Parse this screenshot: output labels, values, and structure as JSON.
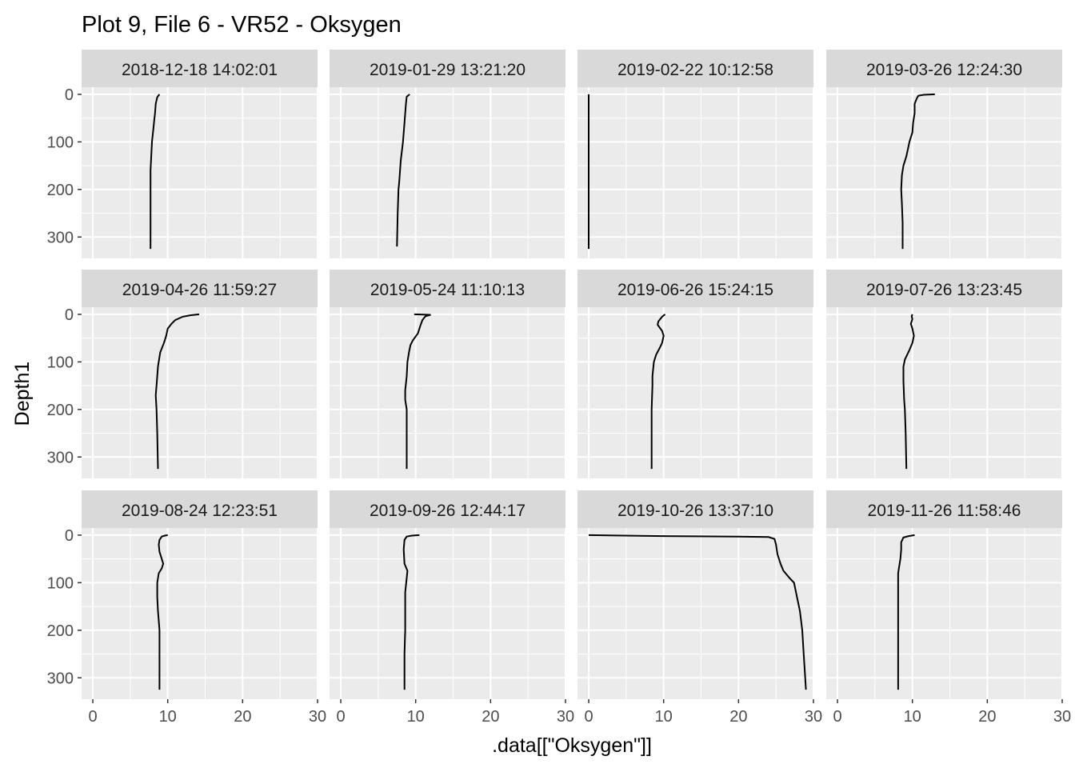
{
  "chart_data": {
    "type": "line",
    "title": "Plot 9, File 6 - VR52  -  Oksygen",
    "xlabel": ".data[[\"Oksygen\"]]",
    "ylabel": "Depth1",
    "xlim": [
      -1.5,
      30
    ],
    "ylim": [
      345,
      -15
    ],
    "x_ticks": [
      0,
      10,
      20,
      30
    ],
    "y_ticks": [
      0,
      100,
      200,
      300
    ],
    "y_reversed": true,
    "grid": true,
    "facets": [
      {
        "label": "2018-12-18 14:02:01",
        "points": [
          [
            8.9,
            0
          ],
          [
            8.6,
            6
          ],
          [
            8.4,
            20
          ],
          [
            8.3,
            40
          ],
          [
            8.2,
            55
          ],
          [
            8.1,
            70
          ],
          [
            7.9,
            100
          ],
          [
            7.8,
            130
          ],
          [
            7.7,
            160
          ],
          [
            7.7,
            200
          ],
          [
            7.7,
            250
          ],
          [
            7.7,
            325
          ]
        ]
      },
      {
        "label": "2019-01-29 13:21:20",
        "points": [
          [
            9.2,
            0
          ],
          [
            8.8,
            5
          ],
          [
            8.7,
            20
          ],
          [
            8.5,
            60
          ],
          [
            8.3,
            100
          ],
          [
            8.0,
            140
          ],
          [
            7.8,
            185
          ],
          [
            7.7,
            200
          ],
          [
            7.6,
            250
          ],
          [
            7.5,
            320
          ]
        ]
      },
      {
        "label": "2019-02-22 10:12:58",
        "points": [
          [
            0,
            0
          ],
          [
            0,
            325
          ]
        ]
      },
      {
        "label": "2019-03-26 12:24:30",
        "points": [
          [
            13.0,
            0
          ],
          [
            11.5,
            1
          ],
          [
            10.8,
            3
          ],
          [
            10.6,
            8
          ],
          [
            10.3,
            20
          ],
          [
            10.3,
            40
          ],
          [
            10.1,
            60
          ],
          [
            10.0,
            80
          ],
          [
            9.6,
            100
          ],
          [
            9.2,
            130
          ],
          [
            8.8,
            150
          ],
          [
            8.6,
            170
          ],
          [
            8.5,
            200
          ],
          [
            8.6,
            230
          ],
          [
            8.7,
            270
          ],
          [
            8.7,
            325
          ]
        ]
      },
      {
        "label": "2019-04-26 11:59:27",
        "points": [
          [
            14.2,
            0
          ],
          [
            13.0,
            2
          ],
          [
            12.0,
            5
          ],
          [
            11.0,
            12
          ],
          [
            10.5,
            20
          ],
          [
            10.0,
            30
          ],
          [
            9.8,
            45
          ],
          [
            9.5,
            60
          ],
          [
            9.0,
            80
          ],
          [
            8.7,
            110
          ],
          [
            8.5,
            150
          ],
          [
            8.4,
            170
          ],
          [
            8.5,
            200
          ],
          [
            8.6,
            250
          ],
          [
            8.7,
            325
          ]
        ]
      },
      {
        "label": "2019-05-24 11:10:13",
        "points": [
          [
            9.8,
            0
          ],
          [
            12.0,
            1
          ],
          [
            11.3,
            4
          ],
          [
            10.9,
            12
          ],
          [
            10.6,
            25
          ],
          [
            10.3,
            40
          ],
          [
            9.6,
            55
          ],
          [
            9.3,
            65
          ],
          [
            9.1,
            80
          ],
          [
            8.9,
            100
          ],
          [
            8.8,
            130
          ],
          [
            8.6,
            160
          ],
          [
            8.6,
            180
          ],
          [
            8.8,
            200
          ],
          [
            8.8,
            250
          ],
          [
            8.8,
            325
          ]
        ]
      },
      {
        "label": "2019-06-26 15:24:15",
        "points": [
          [
            10.2,
            0
          ],
          [
            9.8,
            5
          ],
          [
            9.3,
            15
          ],
          [
            9.2,
            22
          ],
          [
            9.8,
            35
          ],
          [
            10.0,
            45
          ],
          [
            9.8,
            60
          ],
          [
            9.5,
            70
          ],
          [
            9.0,
            85
          ],
          [
            8.7,
            100
          ],
          [
            8.5,
            130
          ],
          [
            8.5,
            150
          ],
          [
            8.4,
            200
          ],
          [
            8.4,
            250
          ],
          [
            8.4,
            325
          ]
        ]
      },
      {
        "label": "2019-07-26 13:23:45",
        "points": [
          [
            10.0,
            0
          ],
          [
            9.9,
            4
          ],
          [
            10.0,
            10
          ],
          [
            9.8,
            20
          ],
          [
            10.0,
            30
          ],
          [
            10.2,
            45
          ],
          [
            10.0,
            60
          ],
          [
            9.6,
            75
          ],
          [
            9.0,
            95
          ],
          [
            8.8,
            110
          ],
          [
            8.8,
            140
          ],
          [
            8.9,
            180
          ],
          [
            9.0,
            200
          ],
          [
            9.1,
            250
          ],
          [
            9.2,
            325
          ]
        ]
      },
      {
        "label": "2019-08-24 12:23:51",
        "points": [
          [
            10.0,
            0
          ],
          [
            9.6,
            1
          ],
          [
            9.2,
            3
          ],
          [
            8.9,
            10
          ],
          [
            8.8,
            20
          ],
          [
            8.9,
            35
          ],
          [
            9.2,
            50
          ],
          [
            9.4,
            60
          ],
          [
            9.2,
            70
          ],
          [
            8.8,
            80
          ],
          [
            8.6,
            100
          ],
          [
            8.6,
            130
          ],
          [
            8.7,
            160
          ],
          [
            8.8,
            180
          ],
          [
            8.9,
            200
          ],
          [
            8.9,
            250
          ],
          [
            8.9,
            325
          ]
        ]
      },
      {
        "label": "2019-09-26 12:44:17",
        "points": [
          [
            10.5,
            0
          ],
          [
            9.5,
            1
          ],
          [
            8.8,
            3
          ],
          [
            8.5,
            10
          ],
          [
            8.4,
            30
          ],
          [
            8.5,
            60
          ],
          [
            8.9,
            75
          ],
          [
            8.8,
            90
          ],
          [
            8.6,
            120
          ],
          [
            8.6,
            160
          ],
          [
            8.6,
            200
          ],
          [
            8.5,
            250
          ],
          [
            8.5,
            325
          ]
        ]
      },
      {
        "label": "2019-10-26 13:37:10",
        "points": [
          [
            0,
            0
          ],
          [
            10,
            2
          ],
          [
            20,
            3
          ],
          [
            24,
            4
          ],
          [
            24.8,
            8
          ],
          [
            25.0,
            20
          ],
          [
            25.2,
            40
          ],
          [
            25.6,
            60
          ],
          [
            26.0,
            75
          ],
          [
            26.8,
            90
          ],
          [
            27.4,
            100
          ],
          [
            27.8,
            130
          ],
          [
            28.2,
            160
          ],
          [
            28.5,
            200
          ],
          [
            28.7,
            250
          ],
          [
            28.9,
            300
          ],
          [
            29.0,
            325
          ]
        ]
      },
      {
        "label": "2019-11-26 11:58:46",
        "points": [
          [
            10.3,
            0
          ],
          [
            9.5,
            2
          ],
          [
            8.8,
            5
          ],
          [
            8.5,
            15
          ],
          [
            8.5,
            30
          ],
          [
            8.4,
            50
          ],
          [
            8.2,
            70
          ],
          [
            8.1,
            80
          ],
          [
            8.1,
            100
          ],
          [
            8.1,
            150
          ],
          [
            8.1,
            200
          ],
          [
            8.1,
            250
          ],
          [
            8.1,
            325
          ]
        ]
      }
    ]
  }
}
